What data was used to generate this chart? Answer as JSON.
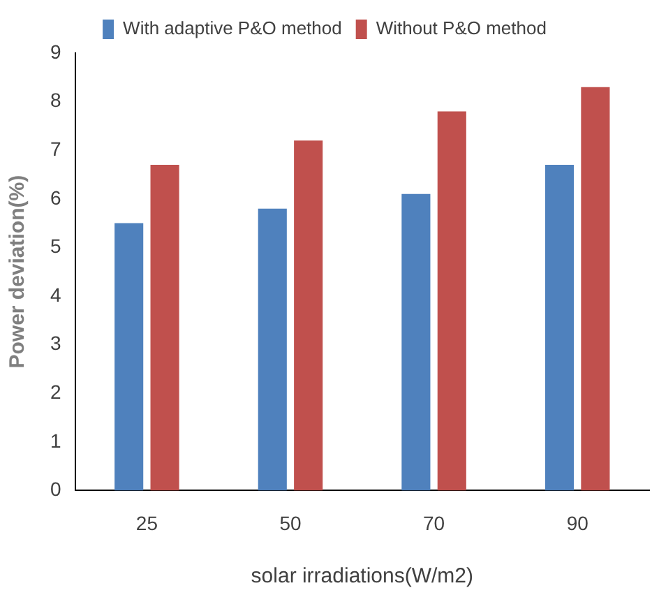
{
  "chart_data": {
    "type": "bar",
    "xlabel": "solar irradiations(W/m2)",
    "ylabel": "Power deviation(%)",
    "categories": [
      "25",
      "50",
      "70",
      "90"
    ],
    "series": [
      {
        "name": "With adaptive P&O method",
        "color": "#4f81bd",
        "values": [
          5.5,
          5.8,
          6.1,
          6.7
        ]
      },
      {
        "name": "Without P&O method",
        "color": "#c0504d",
        "values": [
          6.7,
          7.2,
          7.8,
          8.3
        ]
      }
    ],
    "ylim": [
      0,
      9
    ],
    "yticks": [
      0,
      1,
      2,
      3,
      4,
      5,
      6,
      7,
      8,
      9
    ],
    "grid": false,
    "legend": "top"
  }
}
